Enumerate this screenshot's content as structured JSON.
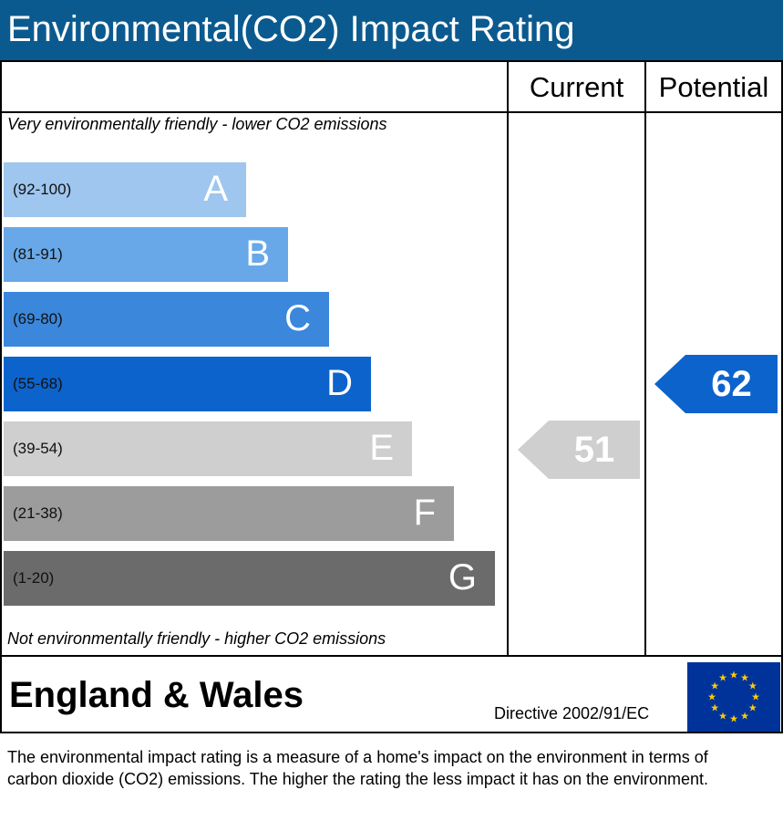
{
  "header": {
    "title": "Environmental(CO2) Impact Rating"
  },
  "columns": {
    "current": "Current",
    "potential": "Potential"
  },
  "notes": {
    "top": "Very environmentally friendly - lower CO2 emissions",
    "bottom": "Not environmentally friendly - higher CO2 emissions"
  },
  "chart_data": {
    "type": "bar",
    "title": "Environmental(CO2) Impact Rating",
    "bands": [
      {
        "letter": "A",
        "range": "(92-100)",
        "min": 92,
        "max": 100,
        "color": "#9ec6ee"
      },
      {
        "letter": "B",
        "range": "(81-91)",
        "min": 81,
        "max": 91,
        "color": "#68a8e8"
      },
      {
        "letter": "C",
        "range": "(69-80)",
        "min": 69,
        "max": 80,
        "color": "#3b87db"
      },
      {
        "letter": "D",
        "range": "(55-68)",
        "min": 55,
        "max": 68,
        "color": "#0d63cc"
      },
      {
        "letter": "E",
        "range": "(39-54)",
        "min": 39,
        "max": 54,
        "color": "#cfcfcf"
      },
      {
        "letter": "F",
        "range": "(21-38)",
        "min": 21,
        "max": 38,
        "color": "#9c9c9c"
      },
      {
        "letter": "G",
        "range": "(1-20)",
        "min": 1,
        "max": 20,
        "color": "#6b6b6b"
      }
    ],
    "ratings": {
      "current": {
        "value": 51,
        "label": "51",
        "band": "E",
        "color": "#cfcfcf"
      },
      "potential": {
        "value": 62,
        "label": "62",
        "band": "D",
        "color": "#0d63cc"
      }
    }
  },
  "footer": {
    "region": "England & Wales",
    "directive": "Directive 2002/91/EC",
    "flag_icon": "eu-flag-icon",
    "flag_colors": {
      "field": "#003399",
      "stars": "#ffcc00"
    },
    "description": "The environmental impact rating is a measure of a home's impact on the environment in terms of carbon dioxide (CO2) emissions. The higher the rating the less impact it has on the environment."
  }
}
